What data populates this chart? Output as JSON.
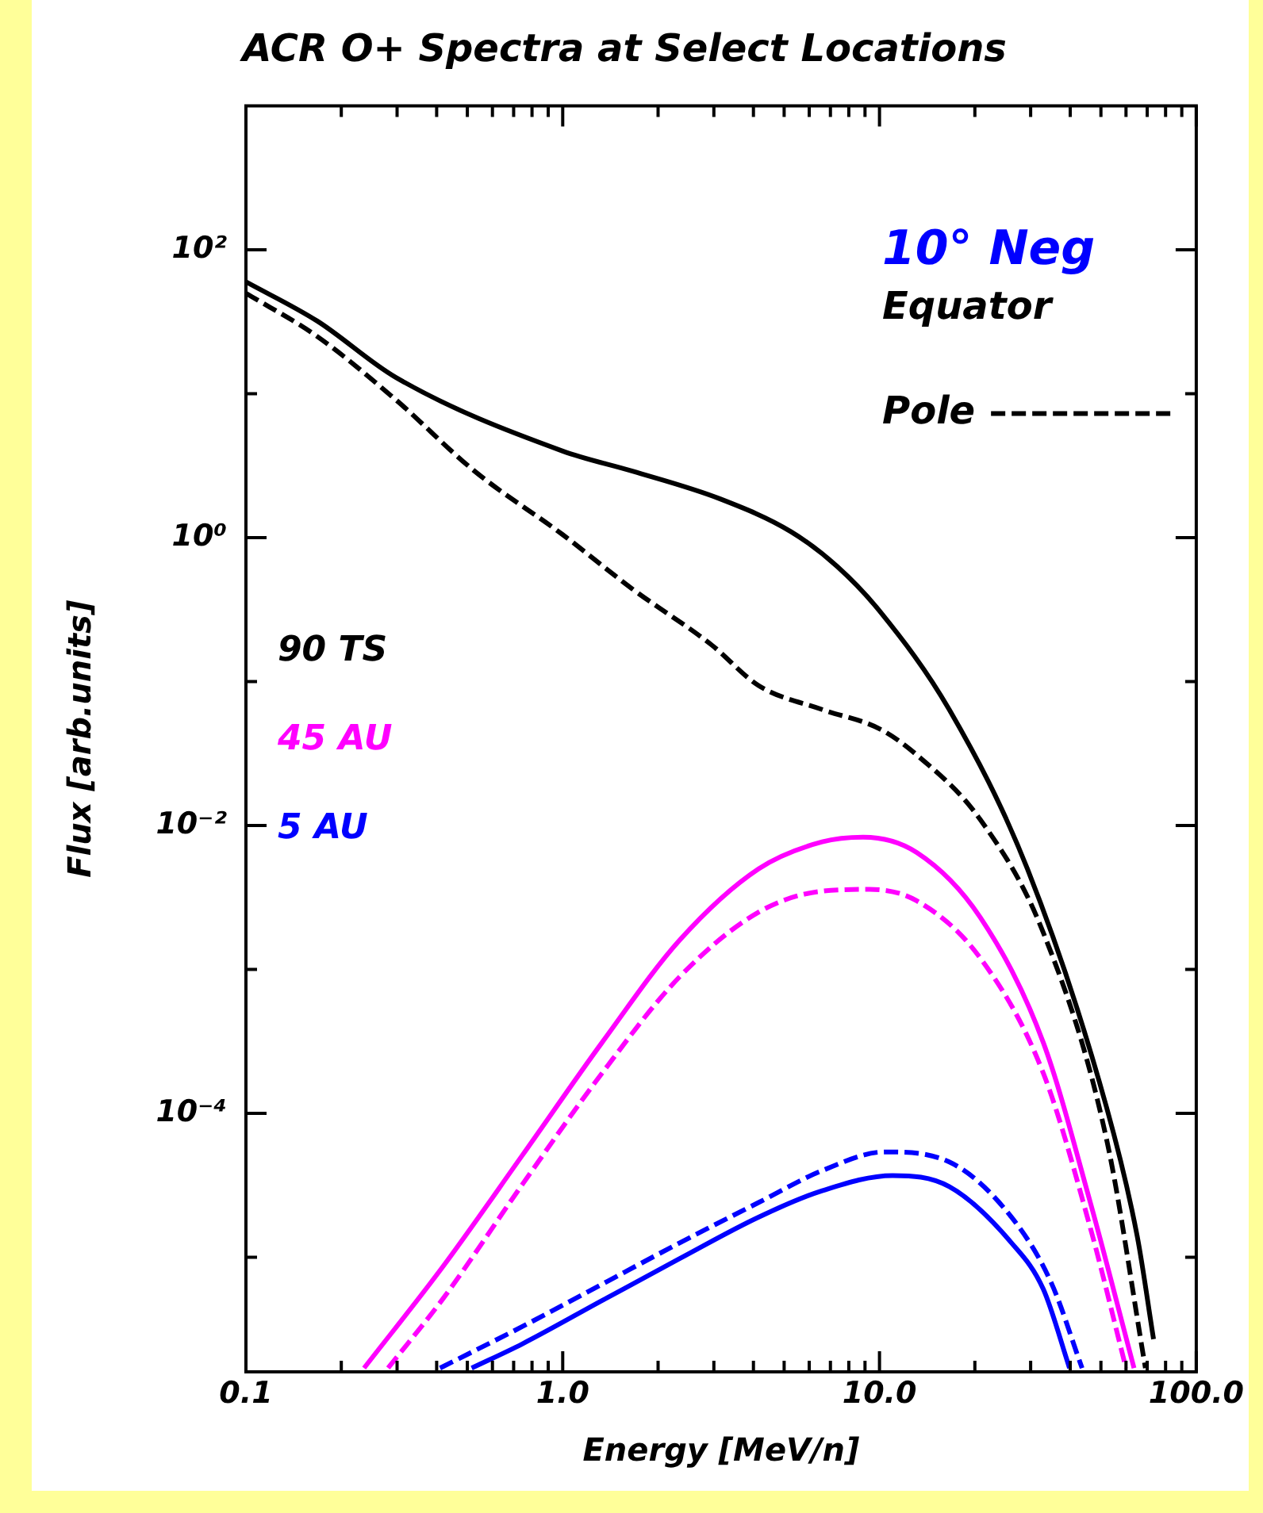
{
  "chart_data": {
    "type": "line",
    "title": "ACR O+ Spectra at Select Locations",
    "xlabel": "Energy [MeV/n]",
    "ylabel": "Flux [arb.units]",
    "log": "xy",
    "xlim": [
      0.1,
      100
    ],
    "ylim": [
      1.6e-06,
      1000
    ],
    "xticks": [
      {
        "value": 0.1,
        "label": "0.1"
      },
      {
        "value": 0.2,
        "label": null
      },
      {
        "value": 0.3,
        "label": null
      },
      {
        "value": 0.4,
        "label": null
      },
      {
        "value": 0.5,
        "label": null
      },
      {
        "value": 0.6,
        "label": null
      },
      {
        "value": 0.7,
        "label": null
      },
      {
        "value": 0.8,
        "label": null
      },
      {
        "value": 0.9,
        "label": null
      },
      {
        "value": 1,
        "label": "1.0"
      },
      {
        "value": 2,
        "label": null
      },
      {
        "value": 3,
        "label": null
      },
      {
        "value": 4,
        "label": null
      },
      {
        "value": 5,
        "label": null
      },
      {
        "value": 6,
        "label": null
      },
      {
        "value": 7,
        "label": null
      },
      {
        "value": 8,
        "label": null
      },
      {
        "value": 9,
        "label": null
      },
      {
        "value": 10,
        "label": "10.0"
      },
      {
        "value": 20,
        "label": null
      },
      {
        "value": 30,
        "label": null
      },
      {
        "value": 40,
        "label": null
      },
      {
        "value": 50,
        "label": null
      },
      {
        "value": 60,
        "label": null
      },
      {
        "value": 70,
        "label": null
      },
      {
        "value": 80,
        "label": null
      },
      {
        "value": 90,
        "label": null
      },
      {
        "value": 100,
        "label": "100.0"
      }
    ],
    "yticks": [
      {
        "value": 100,
        "label": "10²"
      },
      {
        "value": 10,
        "label": null
      },
      {
        "value": 1,
        "label": "10⁰"
      },
      {
        "value": 0.1,
        "label": null
      },
      {
        "value": 0.01,
        "label": "10⁻²"
      },
      {
        "value": 0.001,
        "label": null
      },
      {
        "value": 0.0001,
        "label": "10⁻⁴"
      },
      {
        "value": 1e-05,
        "label": null
      }
    ],
    "annotations": [
      "10° Neg",
      "Equator",
      "Pole"
    ],
    "series": [
      {
        "name": "90 TS",
        "color": "#000000",
        "line_style": "solid",
        "x": [
          0.1,
          0.168,
          0.297,
          1,
          1.66,
          3.14,
          5.26,
          7.36,
          10,
          16.6,
          29.3,
          52.1,
          65.1,
          73.3
        ],
        "values": [
          60,
          32,
          13,
          4.0,
          2.9,
          1.86,
          1.1,
          0.63,
          0.31,
          0.064,
          0.005,
          0.00011,
          1.4e-05,
          2.7e-06
        ]
      },
      {
        "color": "#000000",
        "line_style": "dashed",
        "x": [
          0.1,
          0.168,
          0.297,
          0.527,
          1,
          1.66,
          2.95,
          4.15,
          6.59,
          10,
          13.1,
          20.8,
          32.9,
          52.1,
          69.1
        ],
        "values": [
          50,
          25,
          9.1,
          2.9,
          1.05,
          0.44,
          0.18,
          0.094,
          0.064,
          0.047,
          0.031,
          0.011,
          0.0018,
          6.6e-05,
          1.7e-06
        ]
      },
      {
        "name": "45 AU",
        "color": "#ff00ff",
        "line_style": "solid",
        "x": [
          0.236,
          0.42,
          0.745,
          1.33,
          2.34,
          4.15,
          6.59,
          8.88,
          13.1,
          20.8,
          32.9,
          46.3,
          63.6
        ],
        "values": [
          1.7e-06,
          8.7e-06,
          5.1e-05,
          0.00031,
          0.0016,
          0.005,
          0.0077,
          0.0083,
          0.0065,
          0.0023,
          0.00031,
          2.4e-05,
          1.7e-06
        ]
      },
      {
        "color": "#ff00ff",
        "line_style": "dashed",
        "x": [
          0.281,
          0.42,
          0.745,
          1.33,
          2.34,
          4.15,
          6.59,
          9.29,
          13.1,
          20.8,
          32.9,
          46.3,
          60.0
        ],
        "values": [
          1.7e-06,
          5.2e-06,
          3.2e-05,
          0.00019,
          0.00089,
          0.0025,
          0.0035,
          0.0036,
          0.003,
          0.0012,
          0.00019,
          1.6e-05,
          1.7e-06
        ]
      },
      {
        "name": "5 AU",
        "color": "#0000ff",
        "line_style": "solid",
        "x": [
          0.516,
          0.745,
          1.33,
          2.34,
          4.15,
          6.59,
          11.0,
          16.6,
          26.1,
          32.9,
          39.8
        ],
        "values": [
          1.7e-06,
          2.5e-06,
          5e-06,
          9.8e-06,
          1.9e-05,
          2.9e-05,
          3.7e-05,
          3.1e-05,
          1.26e-05,
          6e-06,
          1.7e-06
        ]
      },
      {
        "color": "#0000ff",
        "line_style": "dashed",
        "x": [
          0.41,
          0.745,
          1.33,
          2.34,
          4.15,
          6.59,
          10.4,
          16.6,
          26.1,
          34.8,
          43.6
        ],
        "values": [
          1.7e-06,
          3.3e-06,
          6.5e-06,
          1.26e-05,
          2.4e-05,
          4e-05,
          5.4e-05,
          4.6e-05,
          1.9e-05,
          6.7e-06,
          1.7e-06
        ]
      }
    ]
  }
}
